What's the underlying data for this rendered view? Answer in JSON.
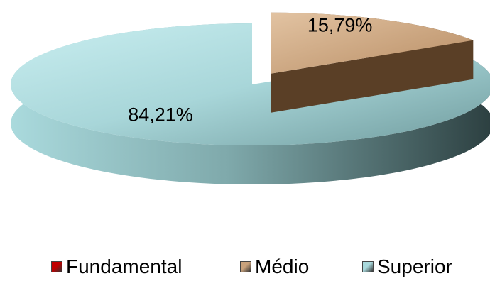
{
  "chart_data": {
    "type": "pie",
    "title": "",
    "categories": [
      "Fundamental",
      "Médio",
      "Superior"
    ],
    "values": [
      0,
      15.79,
      84.21
    ],
    "data_labels": [
      "",
      "15,79%",
      "84,21%"
    ],
    "colors": [
      "#c00000",
      "#c9a27c",
      "#a9d9dc"
    ],
    "legend_position": "bottom",
    "three_d": true,
    "exploded_slice": "Médio"
  },
  "legend": {
    "items": [
      {
        "label": "Fundamental",
        "color": "#c00000"
      },
      {
        "label": "Médio",
        "color": "#c9a27c"
      },
      {
        "label": "Superior",
        "color": "#a9d9dc"
      }
    ]
  }
}
